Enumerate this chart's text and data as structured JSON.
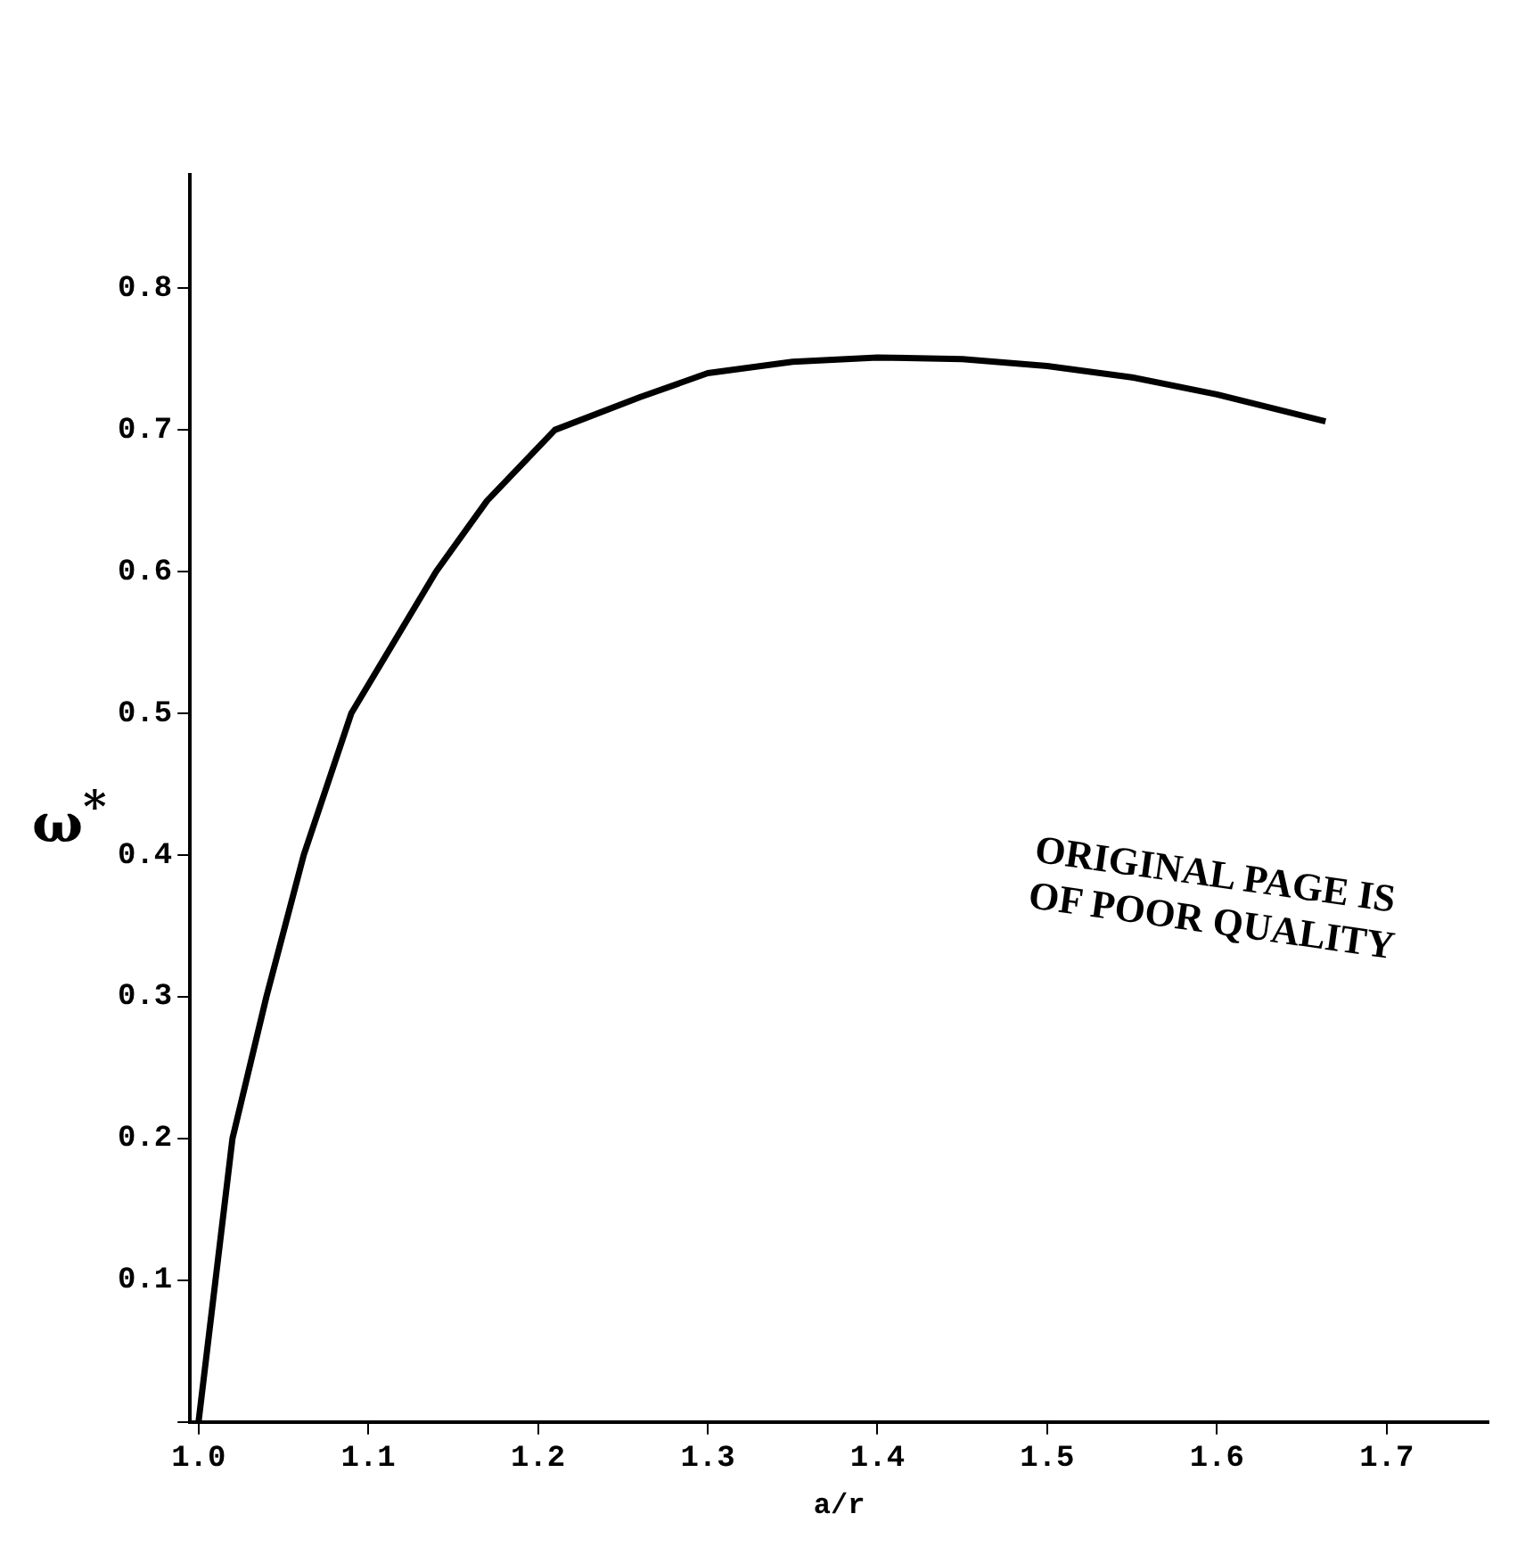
{
  "chart_data": {
    "type": "line",
    "xlabel": "a/r",
    "ylabel": "ω$^{*}$",
    "x": [
      1.0,
      1.01,
      1.02,
      1.04,
      1.062,
      1.09,
      1.14,
      1.17,
      1.21,
      1.26,
      1.3,
      1.35,
      1.4,
      1.45,
      1.5,
      1.55,
      1.6,
      1.664
    ],
    "series": [
      {
        "color": "#000000",
        "values": [
          0,
          0.1,
          0.2,
          0.3,
          0.4,
          0.5,
          0.6,
          0.65,
          0.7,
          0.723,
          0.74,
          0.748,
          0.751,
          0.75,
          0.745,
          0.737,
          0.725,
          0.706
        ]
      }
    ],
    "xlim": [
      0.995,
      1.76
    ],
    "ylim": [
      0,
      0.88
    ],
    "xticks": [
      {
        "value": 1.0,
        "label": "1.0"
      },
      1.1,
      1.2,
      1.3,
      1.4,
      1.5,
      1.6,
      1.7
    ],
    "yticks": [
      {
        "value": 0,
        "label": null
      },
      0.1,
      0.2,
      0.3,
      0.4,
      0.5,
      0.6,
      0.7,
      0.8
    ],
    "grid": false,
    "legend": false,
    "marker": "none",
    "line_style": "solid",
    "annotations": [
      "ORIGINAL PAGE IS OF POOR QUALITY"
    ]
  }
}
